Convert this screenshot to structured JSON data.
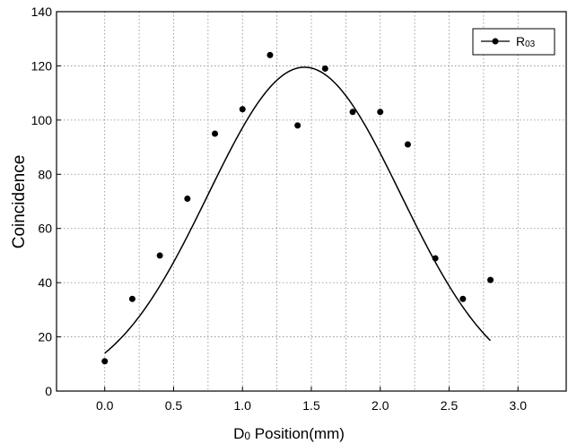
{
  "chart_data": {
    "type": "scatter",
    "title": "",
    "xlabel": {
      "main": "D",
      "sub": "0",
      "rest": " Position(mm)"
    },
    "ylabel": "Coincidence",
    "xlim": [
      -0.35,
      3.35
    ],
    "ylim": [
      0,
      140
    ],
    "x_ticks": [
      0.0,
      0.5,
      1.0,
      1.5,
      2.0,
      2.5,
      3.0
    ],
    "x_tick_labels": [
      "0.0",
      "0.5",
      "1.0",
      "1.5",
      "2.0",
      "2.5",
      "3.0"
    ],
    "x_minor_grid": [
      0.25,
      0.75,
      1.25,
      1.75,
      2.25,
      2.75
    ],
    "y_ticks": [
      0,
      20,
      40,
      60,
      80,
      100,
      120,
      140
    ],
    "y_tick_labels": [
      "0",
      "20",
      "40",
      "60",
      "80",
      "100",
      "120",
      "140"
    ],
    "grid": true,
    "legend": {
      "position": "top-right",
      "label_main": "R",
      "label_sub": "03"
    },
    "series": [
      {
        "name": "R03",
        "marker": "circle",
        "x": [
          0.0,
          0.2,
          0.4,
          0.6,
          0.8,
          1.0,
          1.2,
          1.4,
          1.6,
          1.8,
          2.0,
          2.2,
          2.4,
          2.6,
          2.8
        ],
        "y": [
          11,
          34,
          50,
          71,
          95,
          104,
          124,
          98,
          119,
          103,
          103,
          91,
          49,
          34,
          41
        ]
      }
    ],
    "fit": {
      "type": "gaussian",
      "x_range": [
        0.0,
        2.8
      ],
      "peak": 119.5,
      "center": 1.45,
      "sigma": 0.7
    },
    "colors": {
      "marks": "#000000",
      "grid": "#888888",
      "background": "#ffffff"
    }
  }
}
